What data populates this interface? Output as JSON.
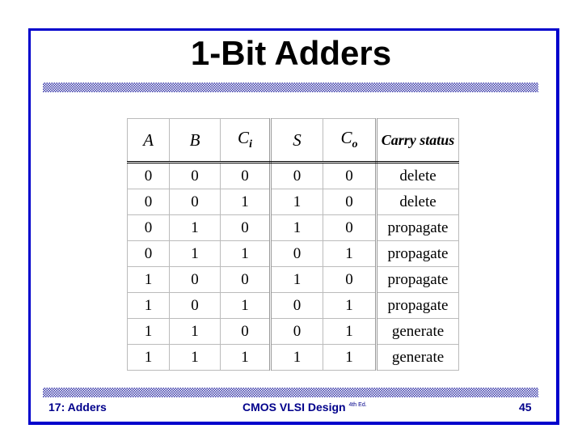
{
  "title": "1-Bit Adders",
  "table": {
    "headers": [
      {
        "main": "A",
        "sub": ""
      },
      {
        "main": "B",
        "sub": ""
      },
      {
        "main": "C",
        "sub": "i"
      },
      {
        "main": "S",
        "sub": ""
      },
      {
        "main": "C",
        "sub": "o"
      },
      {
        "main": "Carry status",
        "sub": ""
      }
    ],
    "rows": [
      [
        "0",
        "0",
        "0",
        "0",
        "0",
        "delete"
      ],
      [
        "0",
        "0",
        "1",
        "1",
        "0",
        "delete"
      ],
      [
        "0",
        "1",
        "0",
        "1",
        "0",
        "propagate"
      ],
      [
        "0",
        "1",
        "1",
        "0",
        "1",
        "propagate"
      ],
      [
        "1",
        "0",
        "0",
        "1",
        "0",
        "propagate"
      ],
      [
        "1",
        "0",
        "1",
        "0",
        "1",
        "propagate"
      ],
      [
        "1",
        "1",
        "0",
        "0",
        "1",
        "generate"
      ],
      [
        "1",
        "1",
        "1",
        "1",
        "1",
        "generate"
      ]
    ]
  },
  "footer": {
    "left": "17: Adders",
    "center": "CMOS VLSI Design",
    "center_sup": "4th Ed.",
    "right": "45"
  },
  "colors": {
    "frame": "#0000cc",
    "footer_text": "#00008b",
    "hatch": "#3a3aa8"
  }
}
